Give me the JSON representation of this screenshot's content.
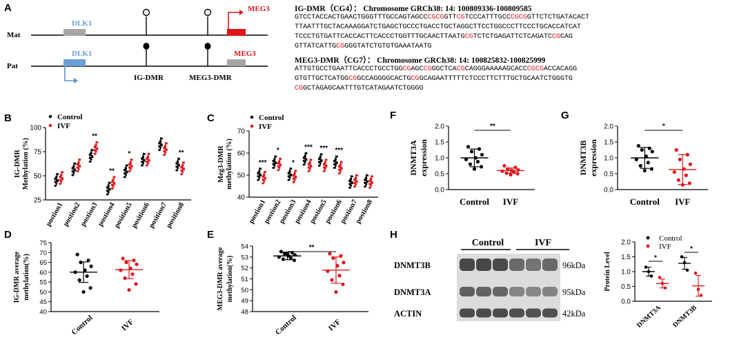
{
  "panels": {
    "A": {
      "letter": "A",
      "mat_label": "Mat",
      "pat_label": "Pat",
      "dlk1": "DLK1",
      "meg3": "MEG3",
      "ig_dmr": "IG-DMR",
      "meg3_dmr": "MEG3-DMR",
      "seq1": {
        "title": "IG-DMR（CG4）： Chromosome GRCh38: 14: 100809336-100809585",
        "lines": [
          "GTCCTACCACTGAACTGGGTTTGCCAGTAGCCCGCGGTTCGTCCCATTTGCCCGCGGTTCTCTGATACACT",
          "TTAATTTGCTACAAAGGATCTGAGCTGCCCTGACCTGCTAGGCTTCCTGGCCCTTCCCTGCACCATCAT",
          "TCCCTGTGATTCACCACTTCACCCTGGTTTGCAACTTAATGCGTCTCTGAGATTCTCAGATCCGCAG",
          "GTTATCATTGCGGGGTATCTGTGTGAAATAATG"
        ]
      },
      "seq2": {
        "title": "MEG3-DMR（CG7）： Chromosome GRCh38: 14: 100825832-100825999",
        "lines": [
          "ATTGTGCCTGAATTCACCCTGCCTGGCGAGCCGGGCTCACGCAGGGAAAAAGCACCCGCGACCACAGG",
          "GTGTTGCTCATGGCGGCCAGGGGCACTGCGGCAGAATTTTTCTCCCTTCTTTGCTGCAATCTGGGTG",
          "CGGCTAGAGCAATTTGTCATAGAATCTGGGG"
        ]
      }
    },
    "B": {
      "letter": "B"
    },
    "C": {
      "letter": "C"
    },
    "D": {
      "letter": "D"
    },
    "E": {
      "letter": "E"
    },
    "F": {
      "letter": "F"
    },
    "G": {
      "letter": "G"
    },
    "H": {
      "letter": "H",
      "control": "Control",
      "ivf": "IVF",
      "bands": [
        "DNMT3B",
        "DNMT3A",
        "ACTIN"
      ],
      "kda": [
        "96kDa",
        "95kDa",
        "42kDa"
      ]
    }
  },
  "colors": {
    "control": "#000000",
    "ivf": "#e0141a",
    "dlk1": "#6a9fd8",
    "meg3_mat": "#e0141a",
    "grey_box": "#a6a6a6",
    "arrow_blue": "#5b8fd3"
  },
  "chart_data": [
    {
      "id": "B",
      "type": "scatter",
      "ylabel": "IG-DMR\nMethylation (%)",
      "ylim": [
        25,
        100
      ],
      "yticks": [
        25,
        50,
        75,
        100
      ],
      "categories": [
        "postion1",
        "postion2",
        "postion3",
        "postion4",
        "position5",
        "position6",
        "position7",
        "position8"
      ],
      "legend": [
        "Control",
        "IVF"
      ],
      "series": [
        {
          "name": "Control",
          "values": [
            46,
            57,
            71,
            37,
            55,
            67,
            83,
            62
          ]
        },
        {
          "name": "IVF",
          "values": [
            48,
            61,
            79,
            43,
            61,
            67,
            78,
            58
          ]
        }
      ],
      "annotations": [
        "",
        "",
        "**",
        "**",
        "*",
        "",
        "",
        "**"
      ]
    },
    {
      "id": "C",
      "type": "scatter",
      "ylabel": "Meg3-DMR\nmethylation (%)",
      "ylim": [
        40,
        70
      ],
      "yticks": [
        40,
        50,
        60,
        70
      ],
      "categories": [
        "postion1",
        "postion2",
        "postion3",
        "postion4",
        "postion5",
        "postion6",
        "postion7",
        "postion8"
      ],
      "legend": [
        "Control",
        "IVF"
      ],
      "series": [
        {
          "name": "Control",
          "values": [
            50.5,
            56,
            50.5,
            57.5,
            57,
            56,
            47,
            47.5
          ]
        },
        {
          "name": "IVF",
          "values": [
            49,
            55,
            49.5,
            54.5,
            54.5,
            53.5,
            47.5,
            47
          ]
        }
      ],
      "annotations": [
        "***",
        "*",
        "*",
        "***",
        "***",
        "***",
        "",
        ""
      ]
    },
    {
      "id": "D",
      "type": "scatter",
      "ylabel": "IG-DMR average\nmethylation(%)",
      "ylim": [
        40,
        75
      ],
      "yticks": [
        40,
        45,
        50,
        55,
        60,
        65,
        70,
        75
      ],
      "categories": [
        "Control",
        "IVF"
      ],
      "series": [
        {
          "name": "Control",
          "mean": 60,
          "sd": 5.2,
          "points": [
            69,
            66,
            65,
            63,
            61,
            60,
            58,
            56,
            52,
            50
          ]
        },
        {
          "name": "IVF",
          "mean": 61.3,
          "sd": 4.6,
          "points": [
            67,
            66,
            65,
            64,
            62,
            61,
            59,
            57,
            54,
            51
          ]
        }
      ],
      "annotations": []
    },
    {
      "id": "E",
      "type": "scatter",
      "ylabel": "MEG3-DMR average\nmethylation(%)",
      "ylim": [
        48,
        54
      ],
      "yticks": [
        48,
        49,
        50,
        51,
        52,
        53,
        54
      ],
      "categories": [
        "Control",
        "IVF"
      ],
      "series": [
        {
          "name": "Control",
          "mean": 53.1,
          "sd": 0.35,
          "points": [
            53.5,
            53.4,
            53.3,
            53.2,
            53.1,
            53.0,
            52.9,
            52.8,
            52.7,
            53.3
          ]
        },
        {
          "name": "IVF",
          "mean": 51.8,
          "sd": 1.2,
          "points": [
            53.3,
            53.1,
            52.9,
            52.5,
            52.2,
            51.7,
            51.3,
            50.9,
            50.5,
            49.8
          ]
        }
      ],
      "annotations": [
        "**"
      ]
    },
    {
      "id": "F",
      "type": "scatter",
      "ylabel": "DNMT3A\nexpression",
      "ylim": [
        0.0,
        2.0
      ],
      "yticks": [
        "0.0",
        "0.5",
        "1.0",
        "1.5",
        "2.0"
      ],
      "categories": [
        "Control",
        "IVF"
      ],
      "series": [
        {
          "name": "Control",
          "mean": 1.0,
          "sd": 0.28,
          "points": [
            1.35,
            1.28,
            1.2,
            1.1,
            1.0,
            0.95,
            0.88,
            0.8,
            0.72,
            0.65
          ]
        },
        {
          "name": "IVF",
          "mean": 0.6,
          "sd": 0.08,
          "points": [
            0.75,
            0.7,
            0.65,
            0.62,
            0.6,
            0.58,
            0.55,
            0.52,
            0.5,
            0.47
          ]
        }
      ],
      "annotations": [
        "**"
      ]
    },
    {
      "id": "G",
      "type": "scatter",
      "ylabel": "DNMT3B\nexpression",
      "ylim": [
        0.0,
        2.0
      ],
      "yticks": [
        "0.0",
        "0.5",
        "1.0",
        "1.5",
        "2.0"
      ],
      "categories": [
        "Control",
        "IVF"
      ],
      "series": [
        {
          "name": "Control",
          "mean": 1.0,
          "sd": 0.33,
          "points": [
            1.38,
            1.3,
            1.25,
            1.2,
            1.05,
            0.95,
            0.85,
            0.75,
            0.65,
            0.6
          ]
        },
        {
          "name": "IVF",
          "mean": 0.63,
          "sd": 0.47,
          "points": [
            1.25,
            1.1,
            0.95,
            0.8,
            0.65,
            0.55,
            0.45,
            0.3,
            0.2,
            0.15
          ]
        }
      ],
      "annotations": [
        "*"
      ]
    },
    {
      "id": "H-chart",
      "type": "scatter",
      "ylabel": "Protein Level",
      "ylim": [
        0.0,
        2.0
      ],
      "yticks": [
        "0.0",
        "0.5",
        "1.0",
        "1.5",
        "2.0"
      ],
      "categories": [
        "DNMT3A",
        "DNMT3B"
      ],
      "legend": [
        "Control",
        "IVF"
      ],
      "series": [
        {
          "name": "Control",
          "mean": [
            1.0,
            1.28
          ],
          "sd": [
            0.15,
            0.2
          ],
          "points": [
            [
              1.15,
              1.0,
              0.85
            ],
            [
              1.5,
              1.3,
              1.05
            ]
          ]
        },
        {
          "name": "IVF",
          "mean": [
            0.6,
            0.52
          ],
          "sd": [
            0.15,
            0.35
          ],
          "points": [
            [
              0.8,
              0.6,
              0.45
            ],
            [
              0.95,
              0.4,
              0.2
            ]
          ]
        }
      ],
      "annotations": [
        "*",
        "*"
      ]
    }
  ]
}
